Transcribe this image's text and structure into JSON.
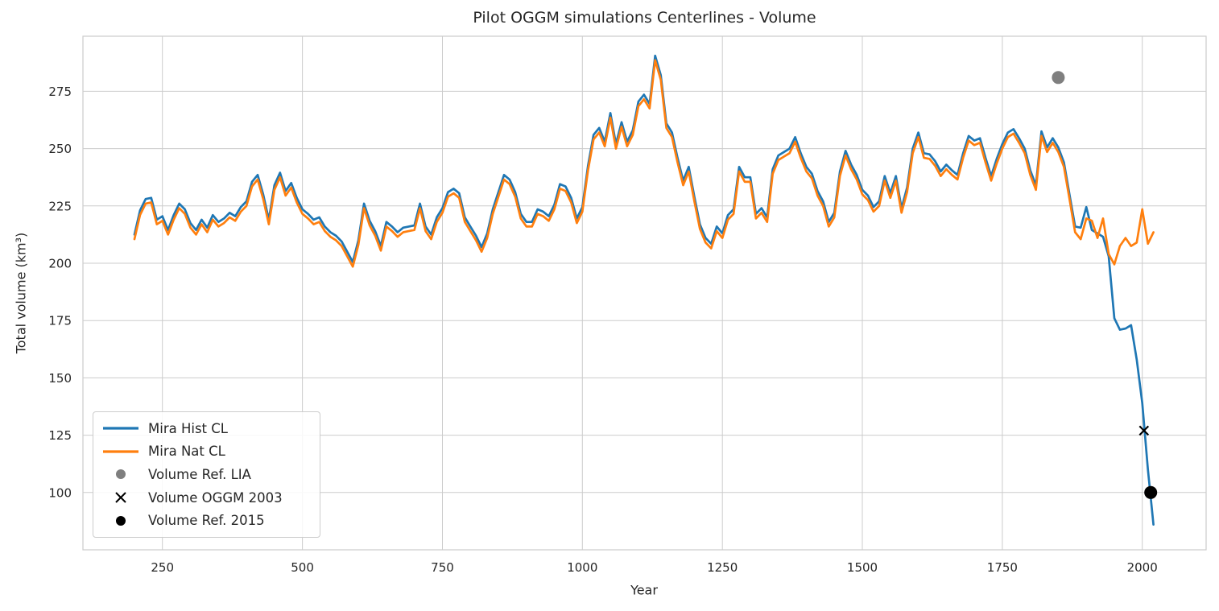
{
  "figure": {
    "title": "Pilot OGGM simulations Centerlines - Volume",
    "xlabel": "Year",
    "ylabel": "Total volume (km³)"
  },
  "legend": {
    "items": [
      {
        "label": "Mira Hist CL",
        "swatch": "line",
        "color": "#1f77b4"
      },
      {
        "label": "Mira Nat CL",
        "swatch": "line",
        "color": "#ff7f0e"
      },
      {
        "label": "Volume Ref. LIA",
        "swatch": "circle",
        "color": "#7f7f7f"
      },
      {
        "label": "Volume OGGM 2003",
        "swatch": "x",
        "color": "#000000"
      },
      {
        "label": "Volume Ref. 2015",
        "swatch": "circle",
        "color": "#000000"
      }
    ]
  },
  "chart_data": {
    "type": "line",
    "title": "Pilot OGGM simulations Centerlines - Volume",
    "xlabel": "Year",
    "ylabel": "Total volume (km³)",
    "xlim": [
      108,
      2114
    ],
    "ylim": [
      75,
      299
    ],
    "xticks": [
      250,
      500,
      750,
      1000,
      1250,
      1500,
      1750,
      2000
    ],
    "yticks": [
      100,
      125,
      150,
      175,
      200,
      225,
      250,
      275
    ],
    "grid": true,
    "grid_color": "#cccccc",
    "legend_position": "lower left",
    "x_start": 200,
    "x_step": 10,
    "series": [
      {
        "name": "Mira Hist CL",
        "color": "#1f77b4",
        "values": [
          212.5,
          223,
          228,
          228.5,
          219,
          220.5,
          214.5,
          221,
          226,
          223.5,
          217.5,
          214.5,
          219,
          215.5,
          221,
          218,
          219.5,
          222,
          220.5,
          224.5,
          227,
          235.5,
          238.5,
          230,
          219,
          234,
          239.5,
          231.5,
          235,
          228.5,
          223.5,
          221.5,
          219,
          220,
          216,
          213.5,
          212,
          209.5,
          205,
          200.5,
          210,
          226,
          218.5,
          214,
          207.5,
          218,
          216,
          213.5,
          215.5,
          216,
          216.5,
          226,
          216,
          212.5,
          220,
          224,
          231,
          232.5,
          230.5,
          220,
          216,
          212,
          207,
          213,
          223.5,
          231,
          238.5,
          236.5,
          231,
          221.5,
          218,
          218,
          223.5,
          222.5,
          220.5,
          225.5,
          234.5,
          233.5,
          228.5,
          219.5,
          224.5,
          242.5,
          256,
          259,
          253,
          265.5,
          252,
          261.5,
          253,
          258,
          270.5,
          273.5,
          269.5,
          290.5,
          282,
          261,
          257,
          246,
          236,
          242,
          229,
          217,
          211,
          208.5,
          216,
          213,
          221,
          223.5,
          242,
          237.5,
          237.5,
          221.5,
          224,
          220,
          241,
          247,
          248.5,
          250,
          255,
          248,
          242,
          239,
          231.5,
          227,
          218,
          222,
          240,
          249,
          243,
          238.5,
          232,
          229.5,
          224.5,
          227,
          238,
          230.5,
          238,
          224,
          233,
          250,
          257,
          248,
          247.5,
          244.5,
          240,
          243,
          240.5,
          238.5,
          248,
          255.5,
          253.5,
          254.5,
          246,
          238,
          245.5,
          252,
          257,
          258.5,
          254.5,
          250,
          240.5,
          234,
          257.5,
          250.5,
          254.5,
          250.5,
          244,
          230,
          216,
          215.5,
          224.5,
          214.5,
          213,
          211.5,
          203,
          176,
          171,
          171.5,
          173,
          158,
          139,
          110,
          86
        ]
      },
      {
        "name": "Mira Nat CL",
        "color": "#ff7f0e",
        "values": [
          210.5,
          221,
          226,
          226.5,
          217,
          218.5,
          212.5,
          219,
          224,
          221.5,
          215.5,
          212.5,
          217,
          213.5,
          219,
          216,
          217.5,
          220,
          218.5,
          222.5,
          225,
          233.5,
          236.5,
          228,
          217,
          232,
          237.5,
          229.5,
          233,
          226.5,
          221.5,
          219.5,
          217,
          218,
          214,
          211.5,
          210,
          207.5,
          203,
          198.5,
          208,
          224,
          216.5,
          212,
          205.5,
          216,
          214,
          211.5,
          213.5,
          214,
          214.5,
          224,
          214,
          210.5,
          218,
          222,
          229,
          230.5,
          228.5,
          218,
          214,
          210,
          205,
          211,
          221.5,
          229,
          236.5,
          234.5,
          229,
          219.5,
          216,
          216,
          221.5,
          220.5,
          218.5,
          223.5,
          232.5,
          231.5,
          226.5,
          217.5,
          222.5,
          240.5,
          254,
          257,
          251,
          263.5,
          250,
          259.5,
          251,
          256,
          268.5,
          271.5,
          267.5,
          288.5,
          280,
          259,
          255,
          244,
          234,
          240,
          227,
          215,
          209,
          206.5,
          214,
          211,
          219,
          221.5,
          240,
          235.5,
          235.5,
          219.5,
          222,
          218,
          239,
          245,
          246.5,
          248,
          253,
          246,
          240,
          237,
          229.5,
          225,
          216,
          220,
          238,
          247,
          241,
          236.5,
          230,
          227.5,
          222.5,
          225,
          236,
          228.5,
          236,
          222,
          231,
          248,
          255,
          246,
          245.5,
          242.5,
          238,
          241,
          238.5,
          236.5,
          246,
          253.5,
          251.5,
          252.5,
          244,
          236,
          243.5,
          250,
          255,
          256.5,
          252.5,
          248,
          238.5,
          232,
          255.5,
          248.5,
          252.5,
          248.5,
          242,
          228,
          213.5,
          210.5,
          219.5,
          218.5,
          211,
          219.5,
          204,
          199.5,
          207.5,
          211,
          207.5,
          209,
          223.5,
          208.5,
          213.5
        ]
      }
    ],
    "points": [
      {
        "name": "Volume Ref. LIA",
        "x": 1850,
        "y": 281,
        "marker": "circle",
        "color": "#7f7f7f"
      },
      {
        "name": "Volume OGGM 2003",
        "x": 2003,
        "y": 127,
        "marker": "x",
        "color": "#000000"
      },
      {
        "name": "Volume Ref. 2015",
        "x": 2015,
        "y": 100,
        "marker": "circle",
        "color": "#000000"
      }
    ]
  }
}
